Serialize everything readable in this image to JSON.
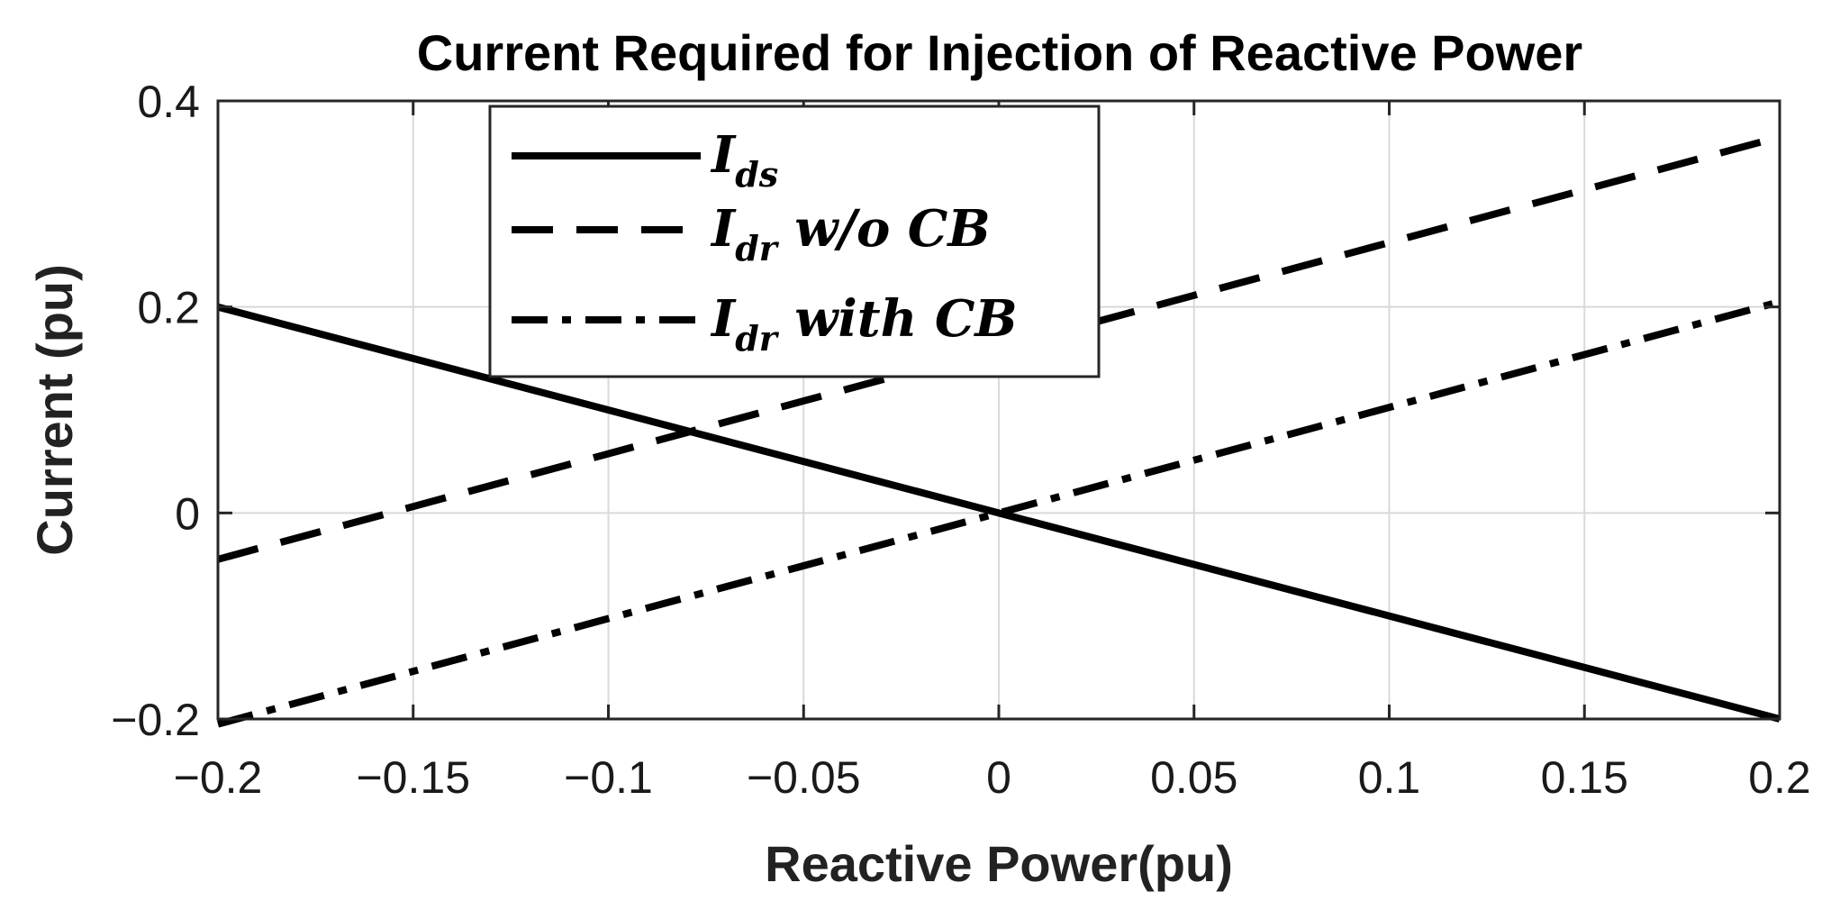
{
  "chart_data": {
    "type": "line",
    "title": "Current Required for Injection of Reactive Power",
    "xlabel": "Reactive Power(pu)",
    "ylabel": "Current (pu)",
    "xlim": [
      -0.2,
      0.2
    ],
    "ylim": [
      -0.2,
      0.4
    ],
    "xticks": [
      "−0.2",
      "−0.15",
      "−0.1",
      "−0.05",
      "0",
      "0.05",
      "0.1",
      "0.15",
      "0.2"
    ],
    "yticks": [
      "−0.2",
      "0",
      "0.2",
      "0.4"
    ],
    "grid": true,
    "legend_position": "top-left",
    "series": [
      {
        "name": "I_ds",
        "legend_main": "I",
        "legend_sub": "ds",
        "legend_rest": "",
        "style": "solid",
        "color": "#000000",
        "x": [
          -0.2,
          0.2
        ],
        "y": [
          0.2,
          -0.2
        ]
      },
      {
        "name": "I_dr w/o CB",
        "legend_main": "I",
        "legend_sub": "dr",
        "legend_rest": " w/o CB",
        "style": "dashed",
        "color": "#000000",
        "x": [
          -0.2,
          0.2
        ],
        "y": [
          -0.045,
          0.365
        ]
      },
      {
        "name": "I_dr with CB",
        "legend_main": "I",
        "legend_sub": "dr",
        "legend_rest": " with CB",
        "style": "dashdot",
        "color": "#000000",
        "x": [
          -0.2,
          0.2
        ],
        "y": [
          -0.205,
          0.205
        ]
      }
    ]
  }
}
